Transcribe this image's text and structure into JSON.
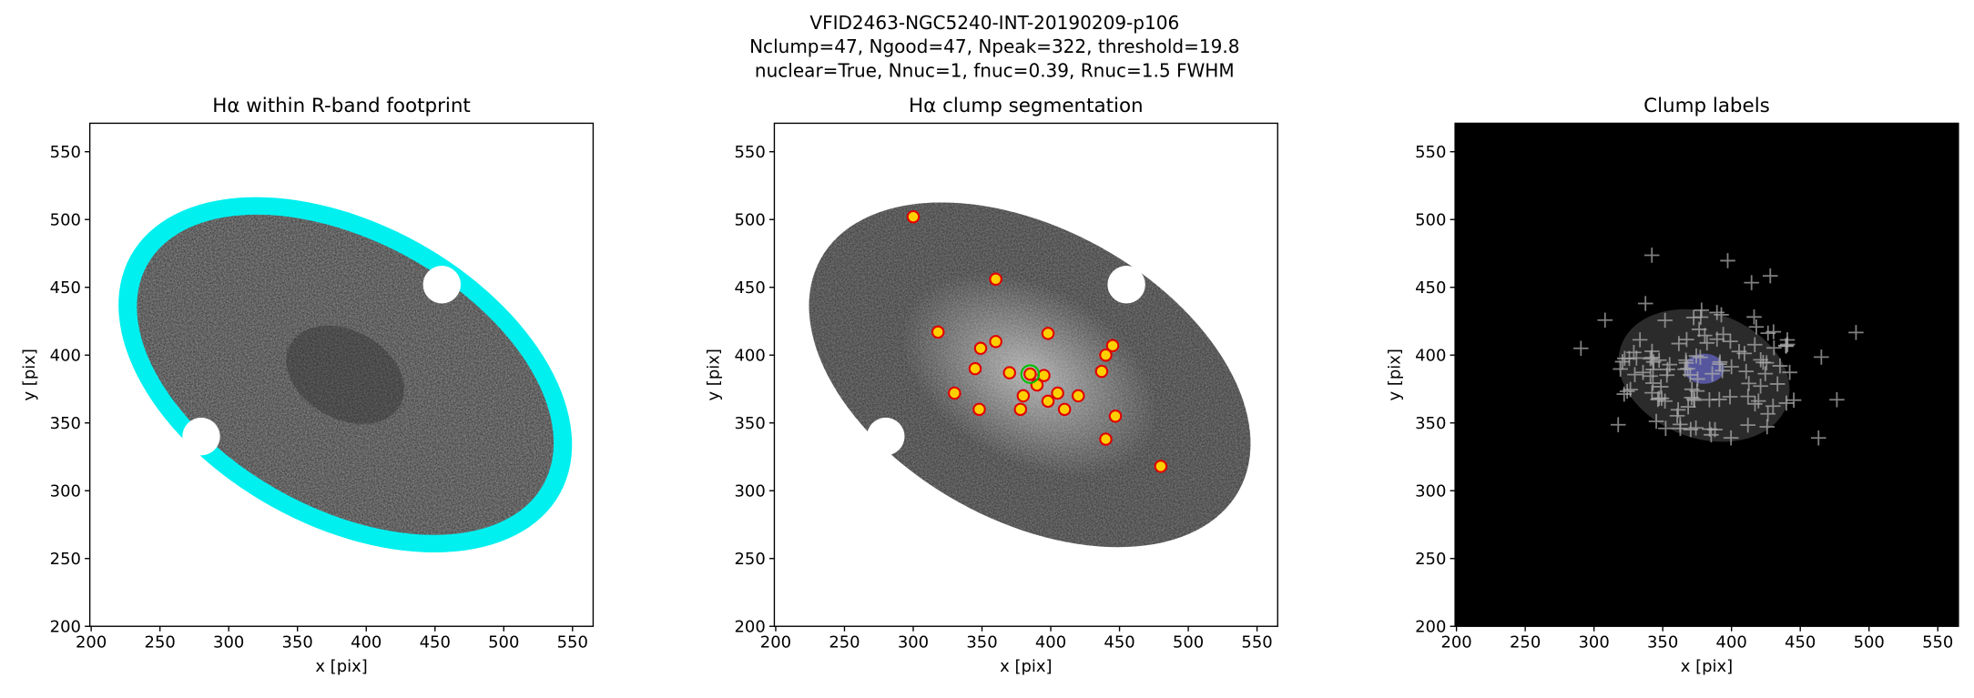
{
  "title": [
    "VFID2463-NGC5240-INT-20190209-p106",
    "Nclump=47, Ngood=47, Npeak=322, threshold=19.8",
    "nuclear=True, Nnuc=1, fnuc=0.39, Rnuc=1.5 FWHM"
  ],
  "chart_data": [
    {
      "type": "image",
      "title": "Hα within R-band footprint",
      "xlabel": "x [pix]",
      "ylabel": "y [pix]",
      "xlim": [
        199,
        565
      ],
      "ylim": [
        200,
        571
      ],
      "xticks": [
        200,
        250,
        300,
        350,
        400,
        450,
        500,
        550
      ],
      "yticks": [
        200,
        250,
        300,
        350,
        400,
        450,
        500,
        550
      ],
      "facecolor": "#ffffff"
    },
    {
      "type": "image",
      "title": "Hα clump segmentation",
      "xlabel": "x [pix]",
      "ylabel": "y [pix]",
      "xlim": [
        199,
        565
      ],
      "ylim": [
        200,
        571
      ],
      "xticks": [
        200,
        250,
        300,
        350,
        400,
        450,
        500,
        550
      ],
      "yticks": [
        200,
        250,
        300,
        350,
        400,
        450,
        500,
        550
      ],
      "facecolor": "#ffffff"
    },
    {
      "type": "image",
      "title": "Clump labels",
      "xlabel": "x [pix]",
      "ylabel": "y [pix]",
      "xlim": [
        199,
        565
      ],
      "ylim": [
        200,
        571
      ],
      "xticks": [
        200,
        250,
        300,
        350,
        400,
        450,
        500,
        550
      ],
      "yticks": [
        200,
        250,
        300,
        350,
        400,
        450,
        500,
        550
      ],
      "facecolor": "#000000"
    }
  ]
}
